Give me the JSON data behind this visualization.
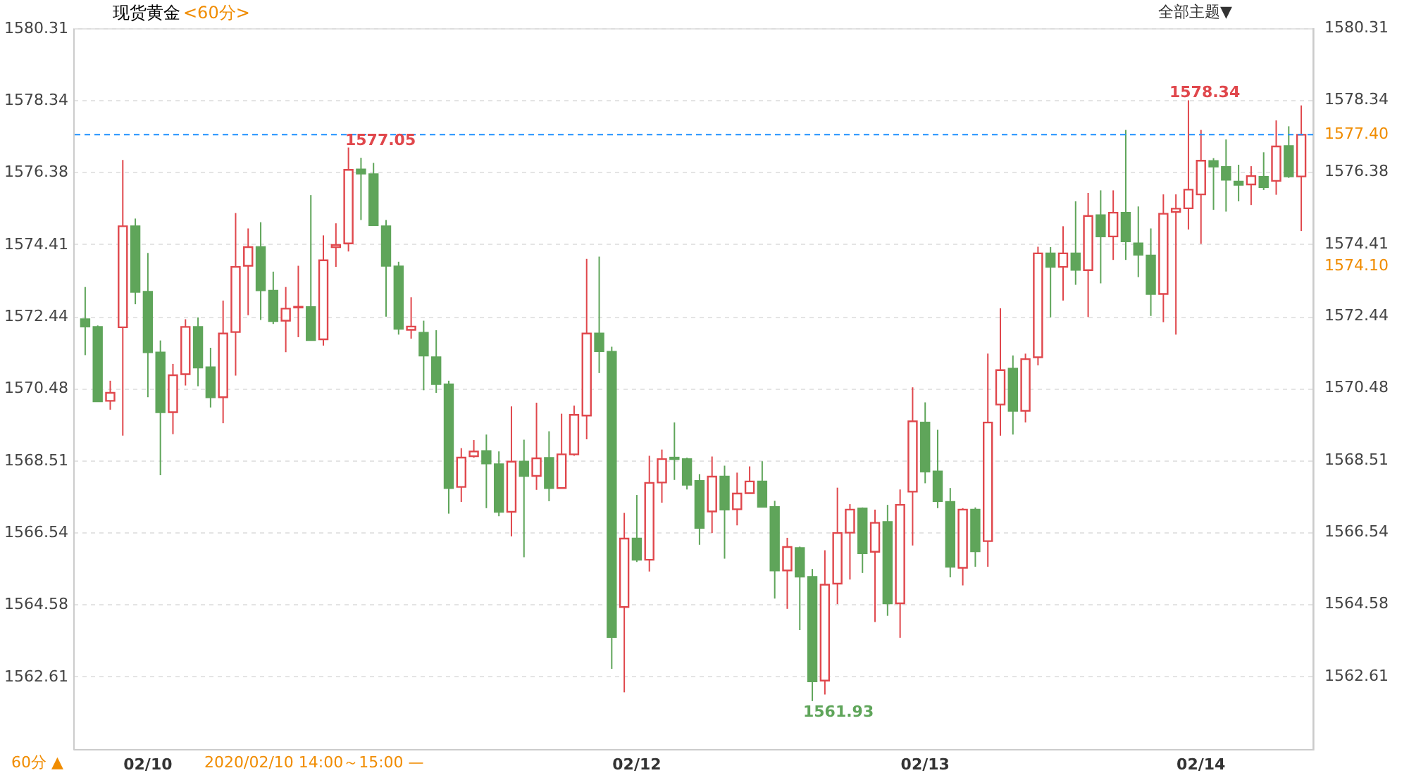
{
  "chart_data": {
    "type": "candlestick",
    "title": "现货黄金",
    "subtitle": "<60分>",
    "categories": [
      null,
      null,
      null,
      null,
      null,
      "02/10",
      null,
      null,
      null,
      null,
      null,
      null,
      null,
      null,
      null,
      null,
      null,
      null,
      null,
      null,
      null,
      null,
      null,
      null,
      null,
      null,
      null,
      null,
      null,
      null,
      null,
      null,
      null,
      null,
      null,
      null,
      null,
      null,
      null,
      null,
      null,
      null,
      null,
      null,
      "02/12",
      null,
      null,
      null,
      null,
      null,
      null,
      null,
      null,
      null,
      null,
      null,
      null,
      null,
      null,
      null,
      null,
      null,
      null,
      null,
      null,
      null,
      null,
      "02/13",
      null,
      null,
      null,
      null,
      null,
      null,
      null,
      null,
      null,
      null,
      null,
      null,
      null,
      null,
      null,
      null,
      null,
      null,
      null,
      null,
      null,
      "02/14",
      null,
      null,
      null,
      null,
      null,
      null,
      null,
      null
    ],
    "ohlc": [
      [
        1572.36,
        1573.24,
        1571.38,
        1572.16
      ],
      [
        1572.15,
        1572.19,
        1570.1,
        1570.12
      ],
      [
        1570.13,
        1570.68,
        1569.89,
        1570.35
      ],
      [
        1572.14,
        1576.71,
        1569.18,
        1574.9
      ],
      [
        1574.9,
        1575.11,
        1572.77,
        1573.11
      ],
      [
        1573.11,
        1574.17,
        1570.23,
        1571.46
      ],
      [
        1571.45,
        1571.78,
        1568.1,
        1569.82
      ],
      [
        1569.82,
        1571.14,
        1569.22,
        1570.83
      ],
      [
        1570.86,
        1572.36,
        1570.55,
        1572.15
      ],
      [
        1572.15,
        1572.41,
        1570.53,
        1571.04
      ],
      [
        1571.05,
        1571.58,
        1569.95,
        1570.23
      ],
      [
        1570.23,
        1572.87,
        1569.52,
        1571.97
      ],
      [
        1572.01,
        1575.26,
        1570.82,
        1573.79
      ],
      [
        1573.82,
        1574.84,
        1572.47,
        1574.33
      ],
      [
        1574.33,
        1575.01,
        1572.34,
        1573.15
      ],
      [
        1573.14,
        1573.66,
        1572.23,
        1572.31
      ],
      [
        1572.32,
        1573.24,
        1571.46,
        1572.65
      ],
      [
        1572.68,
        1573.82,
        1571.87,
        1572.7
      ],
      [
        1572.69,
        1575.75,
        1571.79,
        1571.79
      ],
      [
        1571.81,
        1574.65,
        1571.64,
        1573.97
      ],
      [
        1574.33,
        1574.98,
        1573.79,
        1574.39
      ],
      [
        1574.43,
        1577.05,
        1574.21,
        1576.44
      ],
      [
        1576.45,
        1576.77,
        1575.07,
        1576.34
      ],
      [
        1576.32,
        1576.63,
        1574.93,
        1574.93
      ],
      [
        1574.9,
        1575.07,
        1572.43,
        1573.82
      ],
      [
        1573.8,
        1573.93,
        1571.94,
        1572.1
      ],
      [
        1572.07,
        1572.96,
        1571.83,
        1572.16
      ],
      [
        1571.99,
        1572.32,
        1570.42,
        1571.37
      ],
      [
        1571.32,
        1572.06,
        1570.35,
        1570.59
      ],
      [
        1570.58,
        1570.68,
        1567.05,
        1567.75
      ],
      [
        1567.78,
        1568.84,
        1567.37,
        1568.58
      ],
      [
        1568.62,
        1569.06,
        1568.58,
        1568.75
      ],
      [
        1568.76,
        1569.21,
        1567.2,
        1568.42
      ],
      [
        1568.4,
        1568.75,
        1566.98,
        1567.1
      ],
      [
        1567.1,
        1569.98,
        1566.43,
        1568.47
      ],
      [
        1568.47,
        1569.07,
        1565.86,
        1568.08
      ],
      [
        1568.08,
        1570.08,
        1567.7,
        1568.56
      ],
      [
        1568.57,
        1569.3,
        1567.39,
        1567.75
      ],
      [
        1567.75,
        1569.78,
        1567.75,
        1568.67
      ],
      [
        1568.67,
        1570.0,
        1568.63,
        1569.75
      ],
      [
        1569.73,
        1574.01,
        1569.08,
        1571.97
      ],
      [
        1571.97,
        1574.07,
        1570.89,
        1571.49
      ],
      [
        1571.47,
        1571.61,
        1562.81,
        1563.68
      ],
      [
        1564.5,
        1567.07,
        1562.17,
        1566.37
      ],
      [
        1566.37,
        1567.56,
        1565.73,
        1565.79
      ],
      [
        1565.79,
        1568.63,
        1565.47,
        1567.89
      ],
      [
        1567.9,
        1568.8,
        1567.35,
        1568.54
      ],
      [
        1568.58,
        1569.54,
        1567.97,
        1568.54
      ],
      [
        1568.54,
        1568.58,
        1567.71,
        1567.84
      ],
      [
        1567.94,
        1568.13,
        1566.2,
        1566.66
      ],
      [
        1567.11,
        1568.61,
        1566.52,
        1568.06
      ],
      [
        1568.06,
        1568.36,
        1565.82,
        1567.16
      ],
      [
        1567.17,
        1568.17,
        1566.73,
        1567.6
      ],
      [
        1567.61,
        1568.34,
        1567.61,
        1567.93
      ],
      [
        1567.93,
        1568.48,
        1567.24,
        1567.24
      ],
      [
        1567.23,
        1567.4,
        1564.73,
        1565.5
      ],
      [
        1565.5,
        1566.39,
        1564.45,
        1566.14
      ],
      [
        1566.11,
        1566.15,
        1563.87,
        1565.33
      ],
      [
        1565.32,
        1565.54,
        1561.93,
        1562.47
      ],
      [
        1562.49,
        1566.05,
        1562.11,
        1565.11
      ],
      [
        1565.14,
        1567.76,
        1564.58,
        1566.52
      ],
      [
        1566.53,
        1567.31,
        1565.25,
        1567.16
      ],
      [
        1567.19,
        1567.22,
        1565.43,
        1565.97
      ],
      [
        1566.01,
        1567.16,
        1564.09,
        1566.8
      ],
      [
        1566.82,
        1567.29,
        1564.26,
        1564.6
      ],
      [
        1564.6,
        1567.71,
        1563.66,
        1567.29
      ],
      [
        1567.65,
        1570.5,
        1566.18,
        1569.57
      ],
      [
        1569.54,
        1570.09,
        1567.88,
        1568.2
      ],
      [
        1568.2,
        1569.34,
        1567.2,
        1567.39
      ],
      [
        1567.37,
        1567.75,
        1565.31,
        1565.6
      ],
      [
        1565.57,
        1567.2,
        1565.09,
        1567.16
      ],
      [
        1567.16,
        1567.22,
        1565.6,
        1566.02
      ],
      [
        1566.3,
        1571.42,
        1565.6,
        1569.54
      ],
      [
        1570.03,
        1572.66,
        1569.18,
        1570.97
      ],
      [
        1571.01,
        1571.37,
        1569.21,
        1569.86
      ],
      [
        1569.86,
        1571.42,
        1569.54,
        1571.27
      ],
      [
        1571.32,
        1574.34,
        1571.1,
        1574.16
      ],
      [
        1574.16,
        1574.33,
        1572.41,
        1573.79
      ],
      [
        1573.79,
        1574.9,
        1572.87,
        1574.16
      ],
      [
        1574.16,
        1575.58,
        1573.3,
        1573.71
      ],
      [
        1573.7,
        1575.81,
        1572.42,
        1575.18
      ],
      [
        1575.2,
        1575.88,
        1573.34,
        1574.62
      ],
      [
        1574.62,
        1575.88,
        1573.98,
        1575.27
      ],
      [
        1575.27,
        1577.53,
        1573.98,
        1574.49
      ],
      [
        1574.43,
        1575.44,
        1573.51,
        1574.12
      ],
      [
        1574.1,
        1574.84,
        1572.45,
        1573.05
      ],
      [
        1573.05,
        1575.77,
        1572.28,
        1575.24
      ],
      [
        1575.29,
        1575.77,
        1571.94,
        1575.38
      ],
      [
        1575.39,
        1578.34,
        1574.81,
        1575.9
      ],
      [
        1575.77,
        1577.53,
        1574.42,
        1576.69
      ],
      [
        1576.68,
        1576.76,
        1575.35,
        1576.53
      ],
      [
        1576.52,
        1577.27,
        1575.3,
        1576.17
      ],
      [
        1576.12,
        1576.58,
        1575.58,
        1576.03
      ],
      [
        1576.04,
        1576.54,
        1575.48,
        1576.27
      ],
      [
        1576.25,
        1576.92,
        1575.89,
        1575.97
      ],
      [
        1576.14,
        1577.79,
        1575.76,
        1577.08
      ],
      [
        1577.09,
        1577.63,
        1576.22,
        1576.26
      ],
      [
        1576.26,
        1578.2,
        1574.77,
        1577.4
      ]
    ],
    "colors": [
      "#5fa55a",
      "#5fa55a",
      "#e0474c",
      "#e0474c",
      "#5fa55a",
      "#5fa55a",
      "#5fa55a",
      "#e0474c",
      "#e0474c",
      "#5fa55a",
      "#5fa55a",
      "#e0474c",
      "#e0474c",
      "#e0474c",
      "#5fa55a",
      "#5fa55a",
      "#e0474c",
      "#e0474c",
      "#5fa55a",
      "#e0474c",
      "#e0474c",
      "#e0474c",
      "#5fa55a",
      "#5fa55a",
      "#5fa55a",
      "#5fa55a",
      "#e0474c",
      "#5fa55a",
      "#5fa55a",
      "#5fa55a",
      "#e0474c",
      "#e0474c",
      "#5fa55a",
      "#5fa55a",
      "#e0474c",
      "#5fa55a",
      "#e0474c",
      "#5fa55a",
      "#e0474c",
      "#e0474c",
      "#e0474c",
      "#5fa55a",
      "#5fa55a",
      "#e0474c",
      "#5fa55a",
      "#e0474c",
      "#e0474c",
      "#5fa55a",
      "#5fa55a",
      "#5fa55a",
      "#e0474c",
      "#5fa55a",
      "#e0474c",
      "#e0474c",
      "#5fa55a",
      "#5fa55a",
      "#e0474c",
      "#5fa55a",
      "#5fa55a",
      "#e0474c",
      "#e0474c",
      "#e0474c",
      "#5fa55a",
      "#e0474c",
      "#5fa55a",
      "#e0474c",
      "#e0474c",
      "#5fa55a",
      "#5fa55a",
      "#5fa55a",
      "#e0474c",
      "#5fa55a",
      "#e0474c",
      "#e0474c",
      "#5fa55a",
      "#e0474c",
      "#e0474c",
      "#5fa55a",
      "#e0474c",
      "#5fa55a",
      "#e0474c",
      "#5fa55a",
      "#e0474c",
      "#5fa55a",
      "#5fa55a",
      "#5fa55a",
      "#e0474c",
      "#e0474c",
      "#e0474c",
      "#e0474c",
      "#5fa55a",
      "#5fa55a",
      "#5fa55a",
      "#e0474c",
      "#5fa55a",
      "#e0474c",
      "#5fa55a",
      "#e0474c"
    ],
    "ylim": [
      1560.62,
      1580.31
    ],
    "yticks": [
      1562.61,
      1564.58,
      1566.54,
      1568.51,
      1570.48,
      1572.44,
      1574.41,
      1576.38,
      1578.34,
      1580.31
    ],
    "y2lim": [
      1560.62,
      1580.31
    ],
    "y2ticks": [
      1562.61,
      1564.58,
      1566.54,
      1568.51,
      1570.48,
      1572.44,
      1574.41,
      1576.38,
      1578.34,
      1580.31
    ],
    "grid": "y",
    "ref_lines": [
      {
        "axis": "y",
        "value": 1577.4,
        "label": "1577.40",
        "color": "#1e90ff",
        "line_style": "dashed"
      }
    ],
    "annotations": [
      "1577.05",
      "1578.34",
      "1561.93",
      "1574.10",
      "全部主题▼",
      "60分 ▲",
      "2020/02/10 14:00～15:00 —"
    ]
  }
}
